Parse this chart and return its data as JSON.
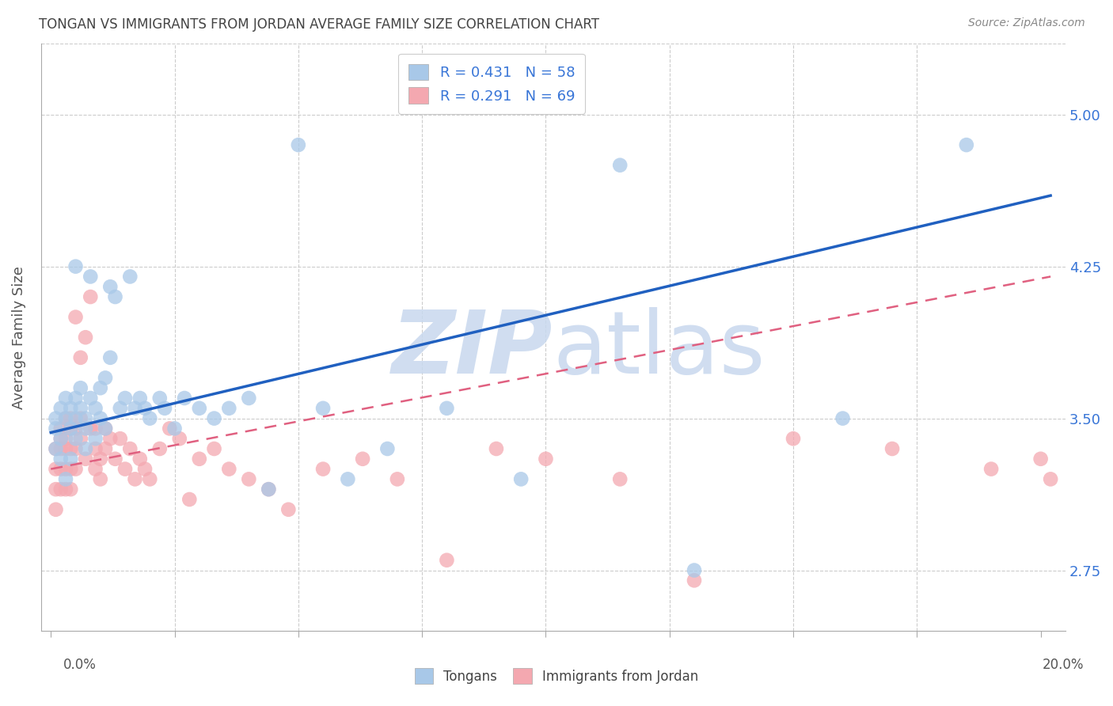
{
  "title": "TONGAN VS IMMIGRANTS FROM JORDAN AVERAGE FAMILY SIZE CORRELATION CHART",
  "source": "Source: ZipAtlas.com",
  "ylabel": "Average Family Size",
  "yticks": [
    2.75,
    3.5,
    4.25,
    5.0
  ],
  "ylim": [
    2.45,
    5.35
  ],
  "xlim": [
    -0.002,
    0.205
  ],
  "legend_blue_r": "0.431",
  "legend_blue_n": "58",
  "legend_pink_r": "0.291",
  "legend_pink_n": "69",
  "blue_color": "#a8c8e8",
  "pink_color": "#f4a8b0",
  "blue_line_color": "#2060c0",
  "pink_line_color": "#e06080",
  "watermark_color": "#c8d8ee",
  "blue_x": [
    0.001,
    0.001,
    0.001,
    0.002,
    0.002,
    0.002,
    0.003,
    0.003,
    0.003,
    0.004,
    0.004,
    0.004,
    0.005,
    0.005,
    0.005,
    0.005,
    0.006,
    0.006,
    0.007,
    0.007,
    0.007,
    0.008,
    0.008,
    0.009,
    0.009,
    0.01,
    0.01,
    0.011,
    0.011,
    0.012,
    0.012,
    0.013,
    0.014,
    0.015,
    0.016,
    0.017,
    0.018,
    0.019,
    0.02,
    0.022,
    0.023,
    0.025,
    0.027,
    0.03,
    0.033,
    0.036,
    0.04,
    0.044,
    0.05,
    0.055,
    0.06,
    0.068,
    0.08,
    0.095,
    0.115,
    0.13,
    0.16,
    0.185
  ],
  "blue_y": [
    3.5,
    3.45,
    3.35,
    3.55,
    3.4,
    3.3,
    3.5,
    3.6,
    3.2,
    3.45,
    3.55,
    3.3,
    3.5,
    3.4,
    3.6,
    4.25,
    3.55,
    3.65,
    3.45,
    3.5,
    3.35,
    3.6,
    4.2,
    3.55,
    3.4,
    3.65,
    3.5,
    3.45,
    3.7,
    3.8,
    4.15,
    4.1,
    3.55,
    3.6,
    4.2,
    3.55,
    3.6,
    3.55,
    3.5,
    3.6,
    3.55,
    3.45,
    3.6,
    3.55,
    3.5,
    3.55,
    3.6,
    3.15,
    4.85,
    3.55,
    3.2,
    3.35,
    3.55,
    3.2,
    4.75,
    2.75,
    3.5,
    4.85
  ],
  "pink_x": [
    0.001,
    0.001,
    0.001,
    0.001,
    0.002,
    0.002,
    0.002,
    0.002,
    0.002,
    0.003,
    0.003,
    0.003,
    0.003,
    0.003,
    0.004,
    0.004,
    0.004,
    0.004,
    0.004,
    0.005,
    0.005,
    0.005,
    0.005,
    0.006,
    0.006,
    0.006,
    0.007,
    0.007,
    0.008,
    0.008,
    0.009,
    0.009,
    0.009,
    0.01,
    0.01,
    0.011,
    0.011,
    0.012,
    0.013,
    0.014,
    0.015,
    0.016,
    0.017,
    0.018,
    0.019,
    0.02,
    0.022,
    0.024,
    0.026,
    0.028,
    0.03,
    0.033,
    0.036,
    0.04,
    0.044,
    0.048,
    0.055,
    0.063,
    0.07,
    0.08,
    0.09,
    0.1,
    0.115,
    0.13,
    0.15,
    0.17,
    0.19,
    0.2,
    0.202
  ],
  "pink_y": [
    3.35,
    3.25,
    3.15,
    3.05,
    3.45,
    3.35,
    3.25,
    3.15,
    3.4,
    3.35,
    3.25,
    3.15,
    3.5,
    3.4,
    3.35,
    3.25,
    3.15,
    3.45,
    3.5,
    3.35,
    3.25,
    3.45,
    4.0,
    3.5,
    3.4,
    3.8,
    3.9,
    3.3,
    4.1,
    3.45,
    3.35,
    3.25,
    3.45,
    3.3,
    3.2,
    3.45,
    3.35,
    3.4,
    3.3,
    3.4,
    3.25,
    3.35,
    3.2,
    3.3,
    3.25,
    3.2,
    3.35,
    3.45,
    3.4,
    3.1,
    3.3,
    3.35,
    3.25,
    3.2,
    3.15,
    3.05,
    3.25,
    3.3,
    3.2,
    2.8,
    3.35,
    3.3,
    3.2,
    2.7,
    3.4,
    3.35,
    3.25,
    3.3,
    3.2
  ],
  "blue_trend_x0": 0.0,
  "blue_trend_y0": 3.43,
  "blue_trend_x1": 0.202,
  "blue_trend_y1": 4.6,
  "pink_trend_x0": 0.0,
  "pink_trend_y0": 3.25,
  "pink_trend_x1": 0.202,
  "pink_trend_y1": 4.2
}
